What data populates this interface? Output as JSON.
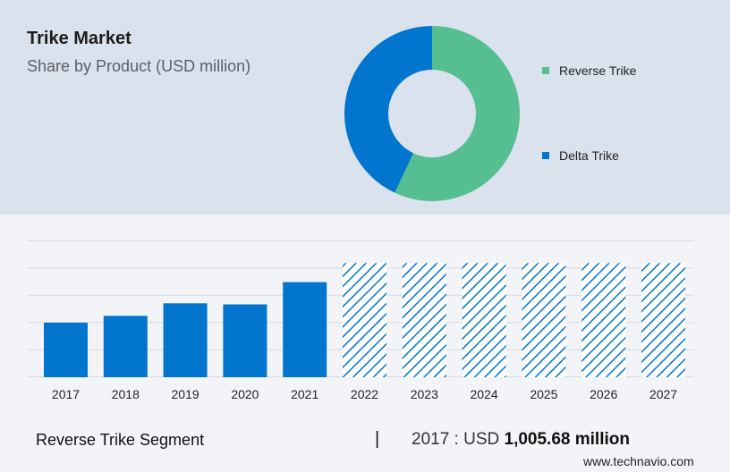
{
  "header": {
    "title": "Trike Market",
    "subtitle": "Share by Product (USD million)"
  },
  "donut": {
    "type": "pie",
    "slices": [
      {
        "name": "Reverse Trike",
        "value": 57,
        "color": "#55bf91"
      },
      {
        "name": "Delta Trike",
        "value": 43,
        "color": "#0275cf"
      }
    ]
  },
  "chart_data": {
    "type": "bar",
    "categories": [
      "2017",
      "2018",
      "2019",
      "2020",
      "2021",
      "2022",
      "2023",
      "2024",
      "2025",
      "2026",
      "2027"
    ],
    "values": [
      1005.68,
      1130,
      1360,
      1340,
      1750,
      2100,
      2100,
      2100,
      2100,
      2100,
      2100
    ],
    "forecast_from": "2022",
    "ylim": [
      0,
      2500
    ],
    "grid": true,
    "bar_color": "#0275cf",
    "forecast_pattern": "diagonal-hatch"
  },
  "footer": {
    "segment": "Reverse Trike Segment",
    "divider": "|",
    "value_prefix": "2017 : USD ",
    "value_bold": "1,005.68 million",
    "site": "www.technavio.com"
  }
}
